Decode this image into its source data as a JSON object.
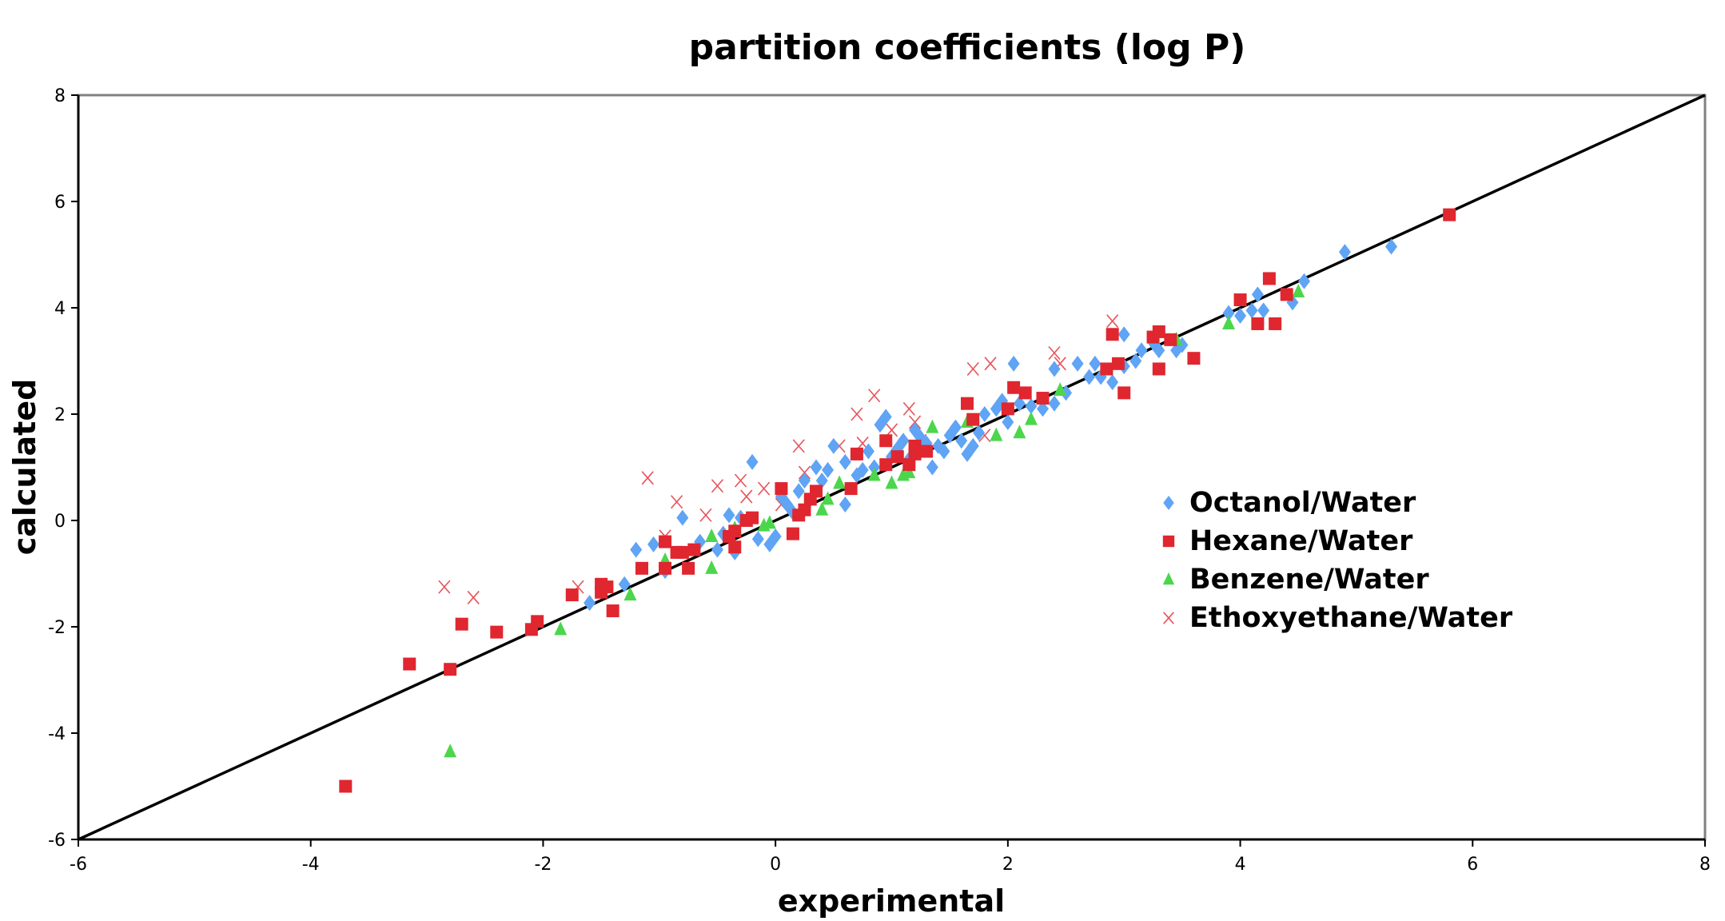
{
  "chart_data": {
    "type": "scatter",
    "title": "partition coefficients (log P)",
    "xlabel": "experimental",
    "ylabel": "calculated",
    "xlim": [
      -6,
      8
    ],
    "ylim": [
      -6,
      8
    ],
    "xticks": [
      "-6",
      "-4",
      "-2",
      "0",
      "2",
      "4",
      "6",
      "8"
    ],
    "yticks": [
      "-6",
      "-4",
      "-2",
      "0",
      "2",
      "4",
      "6",
      "8"
    ],
    "grid": false,
    "legend_position": "right",
    "reference_line": {
      "from": [
        -6,
        -6
      ],
      "to": [
        8,
        8
      ],
      "color": "#000000"
    },
    "series": [
      {
        "name": "Octanol/Water",
        "marker": "diamond",
        "color": "#5fa4f5",
        "points": [
          [
            -1.6,
            -1.55
          ],
          [
            -1.3,
            -1.2
          ],
          [
            -1.2,
            -0.55
          ],
          [
            -1.05,
            -0.45
          ],
          [
            -0.95,
            -0.95
          ],
          [
            -0.8,
            0.05
          ],
          [
            -0.65,
            -0.4
          ],
          [
            -0.5,
            -0.55
          ],
          [
            -0.45,
            -0.25
          ],
          [
            -0.4,
            0.1
          ],
          [
            -0.35,
            -0.6
          ],
          [
            -0.3,
            0.05
          ],
          [
            -0.2,
            1.1
          ],
          [
            -0.15,
            -0.35
          ],
          [
            -0.05,
            -0.45
          ],
          [
            0,
            -0.3
          ],
          [
            0.05,
            0.45
          ],
          [
            0.1,
            0.3
          ],
          [
            0.15,
            0.15
          ],
          [
            0.2,
            0.55
          ],
          [
            0.25,
            0.75
          ],
          [
            0.35,
            1.0
          ],
          [
            0.4,
            0.75
          ],
          [
            0.45,
            0.95
          ],
          [
            0.5,
            1.4
          ],
          [
            0.6,
            0.3
          ],
          [
            0.6,
            1.1
          ],
          [
            0.7,
            0.85
          ],
          [
            0.75,
            0.95
          ],
          [
            0.8,
            1.3
          ],
          [
            0.85,
            1.0
          ],
          [
            0.9,
            1.8
          ],
          [
            0.95,
            1.95
          ],
          [
            1.0,
            1.2
          ],
          [
            1.05,
            1.35
          ],
          [
            1.1,
            1.5
          ],
          [
            1.15,
            1.15
          ],
          [
            1.2,
            1.7
          ],
          [
            1.25,
            1.55
          ],
          [
            1.3,
            1.45
          ],
          [
            1.35,
            1.0
          ],
          [
            1.4,
            1.4
          ],
          [
            1.45,
            1.3
          ],
          [
            1.5,
            1.6
          ],
          [
            1.55,
            1.75
          ],
          [
            1.6,
            1.5
          ],
          [
            1.65,
            1.25
          ],
          [
            1.7,
            1.4
          ],
          [
            1.75,
            1.65
          ],
          [
            1.8,
            2.0
          ],
          [
            1.9,
            2.1
          ],
          [
            1.95,
            2.25
          ],
          [
            2.0,
            1.85
          ],
          [
            2.05,
            2.95
          ],
          [
            2.1,
            2.2
          ],
          [
            2.2,
            2.15
          ],
          [
            2.3,
            2.1
          ],
          [
            2.4,
            2.2
          ],
          [
            2.4,
            2.85
          ],
          [
            2.5,
            2.4
          ],
          [
            2.6,
            2.95
          ],
          [
            2.7,
            2.7
          ],
          [
            2.75,
            2.95
          ],
          [
            2.8,
            2.7
          ],
          [
            2.9,
            2.6
          ],
          [
            3.0,
            2.9
          ],
          [
            3.0,
            3.5
          ],
          [
            3.1,
            3.0
          ],
          [
            3.15,
            3.2
          ],
          [
            3.25,
            3.35
          ],
          [
            3.3,
            3.2
          ],
          [
            3.45,
            3.2
          ],
          [
            3.5,
            3.3
          ],
          [
            3.9,
            3.9
          ],
          [
            4.0,
            3.85
          ],
          [
            4.1,
            3.95
          ],
          [
            4.15,
            4.25
          ],
          [
            4.2,
            3.95
          ],
          [
            4.45,
            4.1
          ],
          [
            4.55,
            4.5
          ],
          [
            4.9,
            5.05
          ],
          [
            5.3,
            5.15
          ]
        ]
      },
      {
        "name": "Hexane/Water",
        "marker": "square",
        "color": "#e0262f",
        "points": [
          [
            -3.7,
            -5.0
          ],
          [
            -3.15,
            -2.7
          ],
          [
            -2.8,
            -2.8
          ],
          [
            -2.7,
            -1.95
          ],
          [
            -2.4,
            -2.1
          ],
          [
            -2.1,
            -2.05
          ],
          [
            -2.05,
            -1.9
          ],
          [
            -1.75,
            -1.4
          ],
          [
            -1.5,
            -1.2
          ],
          [
            -1.5,
            -1.35
          ],
          [
            -1.45,
            -1.25
          ],
          [
            -1.4,
            -1.7
          ],
          [
            -1.15,
            -0.9
          ],
          [
            -0.95,
            -0.4
          ],
          [
            -0.95,
            -0.9
          ],
          [
            -0.85,
            -0.6
          ],
          [
            -0.8,
            -0.6
          ],
          [
            -0.75,
            -0.9
          ],
          [
            -0.7,
            -0.55
          ],
          [
            -0.4,
            -0.3
          ],
          [
            -0.35,
            -0.5
          ],
          [
            -0.35,
            -0.2
          ],
          [
            -0.25,
            0.0
          ],
          [
            -0.2,
            0.05
          ],
          [
            0.05,
            0.6
          ],
          [
            0.15,
            -0.25
          ],
          [
            0.2,
            0.1
          ],
          [
            0.25,
            0.2
          ],
          [
            0.3,
            0.4
          ],
          [
            0.35,
            0.55
          ],
          [
            0.65,
            0.6
          ],
          [
            0.7,
            1.25
          ],
          [
            0.95,
            1.5
          ],
          [
            0.95,
            1.05
          ],
          [
            1.05,
            1.2
          ],
          [
            1.15,
            1.05
          ],
          [
            1.2,
            1.4
          ],
          [
            1.2,
            1.25
          ],
          [
            1.3,
            1.3
          ],
          [
            1.65,
            2.2
          ],
          [
            1.7,
            1.9
          ],
          [
            2.0,
            2.1
          ],
          [
            2.05,
            2.5
          ],
          [
            2.15,
            2.4
          ],
          [
            2.3,
            2.3
          ],
          [
            2.85,
            2.85
          ],
          [
            2.9,
            3.5
          ],
          [
            2.95,
            2.95
          ],
          [
            3.0,
            2.4
          ],
          [
            3.25,
            3.45
          ],
          [
            3.3,
            3.55
          ],
          [
            3.3,
            2.85
          ],
          [
            3.4,
            3.4
          ],
          [
            3.6,
            3.05
          ],
          [
            4.0,
            4.15
          ],
          [
            4.15,
            3.7
          ],
          [
            4.25,
            4.55
          ],
          [
            4.3,
            3.7
          ],
          [
            4.4,
            4.25
          ],
          [
            5.8,
            5.75
          ]
        ]
      },
      {
        "name": "Benzene/Water",
        "marker": "triangle",
        "color": "#4cd64c",
        "points": [
          [
            -2.8,
            -4.35
          ],
          [
            -1.85,
            -2.05
          ],
          [
            -1.25,
            -1.4
          ],
          [
            -0.95,
            -0.75
          ],
          [
            -0.55,
            -0.9
          ],
          [
            -0.55,
            -0.3
          ],
          [
            -0.35,
            -0.15
          ],
          [
            -0.1,
            -0.1
          ],
          [
            -0.05,
            -0.05
          ],
          [
            0.4,
            0.2
          ],
          [
            0.45,
            0.4
          ],
          [
            0.55,
            0.7
          ],
          [
            0.85,
            0.85
          ],
          [
            1.0,
            0.7
          ],
          [
            1.1,
            0.85
          ],
          [
            1.15,
            0.9
          ],
          [
            1.35,
            1.75
          ],
          [
            1.65,
            1.85
          ],
          [
            1.9,
            1.6
          ],
          [
            2.1,
            1.65
          ],
          [
            2.2,
            1.9
          ],
          [
            2.45,
            2.45
          ],
          [
            3.45,
            3.4
          ],
          [
            3.9,
            3.7
          ],
          [
            4.5,
            4.3
          ]
        ]
      },
      {
        "name": "Ethoxyethane/Water",
        "marker": "x",
        "color": "#e8525a",
        "points": [
          [
            -2.85,
            -1.25
          ],
          [
            -2.6,
            -1.45
          ],
          [
            -1.7,
            -1.25
          ],
          [
            -1.1,
            0.8
          ],
          [
            -0.95,
            -0.3
          ],
          [
            -0.85,
            0.35
          ],
          [
            -0.6,
            0.1
          ],
          [
            -0.5,
            0.65
          ],
          [
            -0.3,
            0.75
          ],
          [
            -0.25,
            0.45
          ],
          [
            -0.1,
            0.6
          ],
          [
            0.05,
            0.3
          ],
          [
            0.2,
            1.4
          ],
          [
            0.25,
            0.9
          ],
          [
            0.55,
            1.4
          ],
          [
            0.7,
            2.0
          ],
          [
            0.75,
            1.45
          ],
          [
            0.85,
            2.35
          ],
          [
            1.0,
            1.7
          ],
          [
            1.15,
            2.1
          ],
          [
            1.2,
            1.85
          ],
          [
            1.25,
            1.5
          ],
          [
            1.7,
            2.85
          ],
          [
            1.8,
            1.6
          ],
          [
            1.85,
            2.95
          ],
          [
            2.4,
            3.15
          ],
          [
            2.45,
            2.95
          ],
          [
            2.9,
            3.75
          ]
        ]
      }
    ]
  }
}
